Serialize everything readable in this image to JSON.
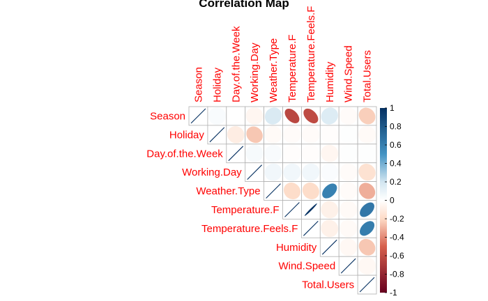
{
  "chart_data": {
    "type": "heatmap",
    "title": "Correlation  Map",
    "variables": [
      "Season",
      "Holiday",
      "Day.of.the.Week",
      "Working.Day",
      "Weather.Type",
      "Temperature.F",
      "Temperature.Feels.F",
      "Humidity",
      "Wind.Speed",
      "Total.Users"
    ],
    "layout": "upper",
    "method": "ellipse",
    "matrix": [
      [
        1.0,
        0.03,
        0.0,
        -0.05,
        0.16,
        -0.63,
        -0.61,
        0.15,
        -0.02,
        -0.23
      ],
      [
        0.03,
        1.0,
        -0.1,
        -0.25,
        -0.03,
        -0.02,
        -0.02,
        -0.01,
        0.01,
        -0.03
      ],
      [
        0.0,
        -0.1,
        1.0,
        0.04,
        0.03,
        -0.01,
        -0.01,
        -0.05,
        0.01,
        0.01
      ],
      [
        -0.05,
        -0.25,
        0.04,
        1.0,
        0.06,
        0.06,
        0.06,
        0.02,
        -0.02,
        -0.16
      ],
      [
        0.16,
        -0.03,
        0.03,
        0.06,
        1.0,
        -0.19,
        -0.19,
        0.59,
        -0.02,
        -0.31
      ],
      [
        -0.63,
        -0.02,
        -0.01,
        0.06,
        -0.19,
        1.0,
        0.99,
        -0.08,
        -0.03,
        0.64
      ],
      [
        -0.61,
        -0.02,
        -0.01,
        0.06,
        -0.19,
        0.99,
        1.0,
        -0.08,
        -0.03,
        0.61
      ],
      [
        0.15,
        -0.01,
        -0.05,
        0.02,
        0.59,
        -0.08,
        -0.08,
        1.0,
        -0.04,
        -0.25
      ],
      [
        -0.02,
        0.01,
        0.01,
        -0.02,
        -0.02,
        -0.03,
        -0.03,
        -0.04,
        1.0,
        -0.04
      ],
      [
        -0.23,
        -0.03,
        0.01,
        -0.16,
        -0.31,
        0.64,
        0.61,
        -0.25,
        -0.04,
        1.0
      ]
    ],
    "colorbar": {
      "ticks": [
        "1",
        "0.8",
        "0.6",
        "0.4",
        "0.2",
        "0",
        "-0.2",
        "-0.4",
        "-0.6",
        "-0.8",
        "-1"
      ],
      "range": [
        -1,
        1
      ],
      "colors": {
        "neg_strong": "#67001f",
        "neg_mid": "#d6604d",
        "neg_light": "#fddbc7",
        "neutral": "#ffffff",
        "pos_light": "#d1e5f0",
        "pos_mid": "#4393c3",
        "pos_strong": "#053061"
      }
    },
    "label_color": "#ff0000",
    "grid_color": "#b0b0b0"
  }
}
